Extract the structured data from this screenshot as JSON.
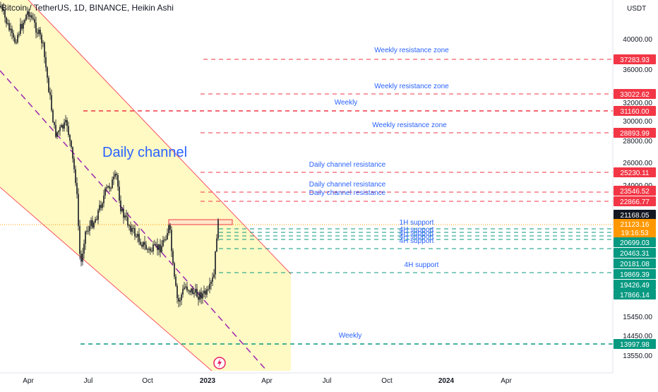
{
  "header": {
    "symbol_title": "Bitcoin / TetherUS, 1D, BINANCE, Heikin Ashi",
    "currency": "USDT"
  },
  "chart_annotations": {
    "channel_label": "Daily channel"
  },
  "chart_data": {
    "type": "candlestick",
    "subtitle": "Heikin Ashi",
    "x_tick_labels": [
      "Apr",
      "Jul",
      "Oct",
      "2023",
      "Apr",
      "Jul",
      "Oct",
      "2024",
      "Apr"
    ],
    "y_tick_labels": [
      40000,
      36000,
      32000,
      30000,
      28000,
      26000,
      24000,
      15450,
      14450,
      13550
    ],
    "last_price": 21168.05,
    "price_tags": [
      {
        "value": "37283.93",
        "kind": "resistance"
      },
      {
        "value": "33022.62",
        "kind": "resistance"
      },
      {
        "value": "31160.00",
        "kind": "resistance"
      },
      {
        "value": "28893.99",
        "kind": "resistance"
      },
      {
        "value": "25230.11",
        "kind": "resistance"
      },
      {
        "value": "23546.52",
        "kind": "resistance"
      },
      {
        "value": "22866.77",
        "kind": "resistance"
      },
      {
        "value": "21168.05",
        "kind": "last"
      },
      {
        "value": "21123.16",
        "kind": "current"
      },
      {
        "value": "19:16:53",
        "kind": "countdown"
      },
      {
        "value": "20699.03",
        "kind": "support"
      },
      {
        "value": "20463.31",
        "kind": "support"
      },
      {
        "value": "20181.08",
        "kind": "support"
      },
      {
        "value": "19869.39",
        "kind": "support"
      },
      {
        "value": "19426.49",
        "kind": "support"
      },
      {
        "value": "17866.14",
        "kind": "support"
      },
      {
        "value": "13997.98",
        "kind": "support"
      }
    ],
    "levels": [
      {
        "label": "Weekly resistance zone",
        "value": 37283.93,
        "type": "resistance"
      },
      {
        "label": "Weekly resistance zone",
        "value": 33022.62,
        "type": "resistance"
      },
      {
        "label": "Weekly",
        "value": 31160.0,
        "type": "resistance"
      },
      {
        "label": "Weekly resistance zone",
        "value": 28893.99,
        "type": "resistance"
      },
      {
        "label": "Daily channel resistance",
        "value": 25230.11,
        "type": "resistance"
      },
      {
        "label": "Daily channel resistance",
        "value": 23546.52,
        "type": "resistance"
      },
      {
        "label": "Daily channel resistance",
        "value": 22866.77,
        "type": "resistance"
      },
      {
        "label": "1H support",
        "value": 20699.03,
        "type": "support"
      },
      {
        "label": "4H support",
        "value": 20463.31,
        "type": "support"
      },
      {
        "label": "4H support",
        "value": 20181.08,
        "type": "support"
      },
      {
        "label": "4H support",
        "value": 19869.39,
        "type": "support"
      },
      {
        "label": "4H support",
        "value": 19426.49,
        "type": "support"
      },
      {
        "label": "4H support",
        "value": 17866.14,
        "type": "support"
      },
      {
        "label": "Weekly",
        "value": 13997.98,
        "type": "support"
      }
    ],
    "colors": {
      "up": "#26a69a",
      "down": "#ef5350",
      "candle": "#131722",
      "resistance": "#f23645",
      "support": "#089981",
      "label_text": "#2962ff",
      "channel_fill": "#fff9c4",
      "channel_border": "#f7525f",
      "midline": "#9c27b0",
      "current_tag": "#ff9800"
    }
  }
}
